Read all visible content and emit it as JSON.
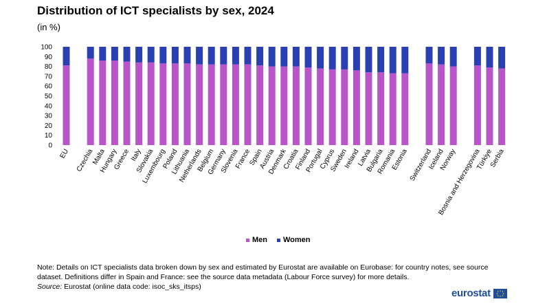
{
  "title": "Distribution of ICT specialists by sex, 2024",
  "subtitle": "(in %)",
  "chart_data": {
    "type": "bar",
    "stacked": true,
    "categories": [
      "EU",
      "Czechia",
      "Malta",
      "Hungary",
      "Greece",
      "Italy",
      "Slovakia",
      "Luxembourg",
      "Poland",
      "Lithuania",
      "Netherlands",
      "Belgium",
      "Germany",
      "Slovenia",
      "France",
      "Spain",
      "Austria",
      "Denmark",
      "Croatia",
      "Finland",
      "Portugal",
      "Cyprus",
      "Sweden",
      "Ireland",
      "Latvia",
      "Bulgaria",
      "Romania",
      "Estonia",
      "Switzerland",
      "Iceland",
      "Norway",
      "Bosnia and Herzegovina",
      "Türkiye",
      "Serbia"
    ],
    "groups_after": [
      0,
      27,
      30
    ],
    "series": [
      {
        "name": "Men",
        "color": "#b855c8",
        "values": [
          81,
          88,
          86,
          86,
          85,
          84,
          84,
          83,
          83,
          83,
          82,
          82,
          82,
          82,
          82,
          81,
          80,
          80,
          80,
          79,
          78,
          77,
          77,
          76,
          74,
          74,
          73,
          73,
          83,
          82,
          80,
          81,
          79,
          78
        ]
      },
      {
        "name": "Women",
        "color": "#2a3fb2",
        "values": [
          19,
          12,
          14,
          14,
          15,
          16,
          16,
          17,
          17,
          17,
          18,
          18,
          18,
          18,
          18,
          19,
          20,
          20,
          20,
          21,
          22,
          23,
          23,
          24,
          26,
          26,
          27,
          27,
          17,
          18,
          20,
          19,
          21,
          22
        ]
      }
    ],
    "y_ticks": [
      "0",
      "10",
      "20",
      "30",
      "40",
      "50",
      "60",
      "70",
      "80",
      "90",
      "100"
    ],
    "ylim": [
      0,
      100
    ],
    "legend_position": "bottom-center"
  },
  "legend": {
    "men": "Men",
    "women": "Women"
  },
  "note": "Note: Details on ICT specialists data broken down by sex and estimated by Eurostat are available on Eurobase: for country notes, see source dataset. Definitions differ in Spain and France: see the source data metadata (Labour Force survey) for more details.",
  "source_label": "Source:",
  "source_text": " Eurostat (online data code: isoc_sks_itsps)",
  "logo_text": "eurostat"
}
